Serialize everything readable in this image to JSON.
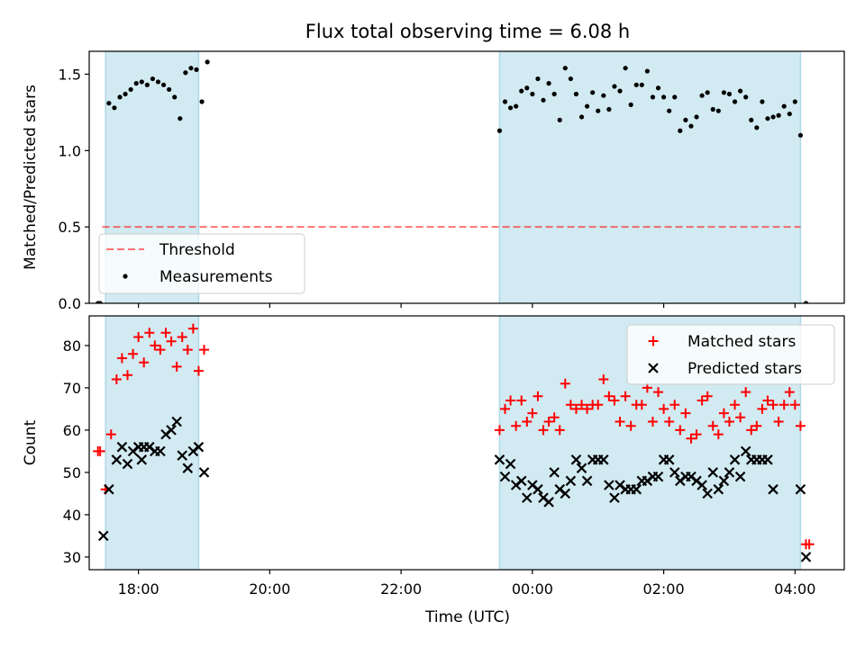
{
  "figure": {
    "title": "Flux total observing time = 6.08 h",
    "xlabel": "Time (UTC)"
  },
  "colors": {
    "shade": "#add8e6",
    "threshold": "#ff0000",
    "matched": "#ff0000",
    "predicted": "#000000",
    "measurement": "#000000"
  },
  "chart_data": [
    {
      "type": "scatter",
      "panel": "top",
      "ylabel": "Matched/Predicted stars",
      "xlim": [
        "17:15",
        "04:45"
      ],
      "ylim": [
        0,
        1.65
      ],
      "yticks": [
        0.0,
        0.5,
        1.0,
        1.5
      ],
      "ytick_labels": [
        "0.0",
        "0.5",
        "1.0",
        "1.5"
      ],
      "grid": false,
      "legend_position": "lower-left",
      "legend": [
        "Threshold",
        "Measurements"
      ],
      "shaded_intervals": [
        [
          "17:30",
          "18:55"
        ],
        [
          "23:30",
          "04:05"
        ]
      ],
      "threshold": {
        "name": "Threshold",
        "y": 0.5,
        "x_range": [
          "17:27",
          "04:05"
        ],
        "style": "dashed"
      },
      "series": [
        {
          "name": "Measurements",
          "marker": "dot",
          "points": [
            [
              "17:23",
              0.0
            ],
            [
              "17:25",
              0.0
            ],
            [
              "17:33",
              1.31
            ],
            [
              "17:38",
              1.28
            ],
            [
              "17:43",
              1.35
            ],
            [
              "17:48",
              1.37
            ],
            [
              "17:53",
              1.4
            ],
            [
              "17:58",
              1.44
            ],
            [
              "18:03",
              1.45
            ],
            [
              "18:08",
              1.43
            ],
            [
              "18:13",
              1.47
            ],
            [
              "18:18",
              1.45
            ],
            [
              "18:23",
              1.43
            ],
            [
              "18:28",
              1.4
            ],
            [
              "18:33",
              1.35
            ],
            [
              "18:38",
              1.21
            ],
            [
              "18:43",
              1.51
            ],
            [
              "18:48",
              1.54
            ],
            [
              "18:53",
              1.53
            ],
            [
              "18:58",
              1.32
            ],
            [
              "19:03",
              1.58
            ],
            [
              "23:30",
              1.13
            ],
            [
              "23:35",
              1.32
            ],
            [
              "23:40",
              1.28
            ],
            [
              "23:45",
              1.29
            ],
            [
              "23:50",
              1.39
            ],
            [
              "23:55",
              1.41
            ],
            [
              "00:00",
              1.37
            ],
            [
              "00:05",
              1.47
            ],
            [
              "00:10",
              1.33
            ],
            [
              "00:15",
              1.44
            ],
            [
              "00:20",
              1.37
            ],
            [
              "00:25",
              1.2
            ],
            [
              "00:30",
              1.54
            ],
            [
              "00:35",
              1.47
            ],
            [
              "00:40",
              1.37
            ],
            [
              "00:45",
              1.22
            ],
            [
              "00:50",
              1.29
            ],
            [
              "00:55",
              1.38
            ],
            [
              "01:00",
              1.26
            ],
            [
              "01:05",
              1.36
            ],
            [
              "01:10",
              1.27
            ],
            [
              "01:15",
              1.42
            ],
            [
              "01:20",
              1.39
            ],
            [
              "01:25",
              1.54
            ],
            [
              "01:30",
              1.3
            ],
            [
              "01:35",
              1.43
            ],
            [
              "01:40",
              1.43
            ],
            [
              "01:45",
              1.52
            ],
            [
              "01:50",
              1.35
            ],
            [
              "01:55",
              1.41
            ],
            [
              "02:00",
              1.35
            ],
            [
              "02:05",
              1.26
            ],
            [
              "02:10",
              1.35
            ],
            [
              "02:15",
              1.13
            ],
            [
              "02:20",
              1.2
            ],
            [
              "02:25",
              1.16
            ],
            [
              "02:30",
              1.22
            ],
            [
              "02:35",
              1.36
            ],
            [
              "02:40",
              1.38
            ],
            [
              "02:45",
              1.27
            ],
            [
              "02:50",
              1.26
            ],
            [
              "02:55",
              1.38
            ],
            [
              "03:00",
              1.37
            ],
            [
              "03:05",
              1.32
            ],
            [
              "03:10",
              1.39
            ],
            [
              "03:15",
              1.35
            ],
            [
              "03:20",
              1.2
            ],
            [
              "03:25",
              1.15
            ],
            [
              "03:30",
              1.32
            ],
            [
              "03:35",
              1.21
            ],
            [
              "03:40",
              1.22
            ],
            [
              "03:45",
              1.23
            ],
            [
              "03:50",
              1.29
            ],
            [
              "03:55",
              1.24
            ],
            [
              "04:00",
              1.32
            ],
            [
              "04:05",
              1.1
            ],
            [
              "04:10",
              0.0
            ]
          ]
        }
      ]
    },
    {
      "type": "scatter",
      "panel": "bottom",
      "ylabel": "Count",
      "xlabel": "Time (UTC)",
      "xlim": [
        "17:15",
        "04:45"
      ],
      "ylim": [
        27,
        87
      ],
      "yticks": [
        30,
        40,
        50,
        60,
        70,
        80
      ],
      "ytick_labels": [
        "30",
        "40",
        "50",
        "60",
        "70",
        "80"
      ],
      "xticks": [
        "18:00",
        "20:00",
        "22:00",
        "00:00",
        "02:00",
        "04:00"
      ],
      "xtick_labels": [
        "18:00",
        "20:00",
        "22:00",
        "00:00",
        "02:00",
        "04:00"
      ],
      "grid": false,
      "legend_position": "upper-right",
      "legend": [
        "Matched stars",
        "Predicted stars"
      ],
      "shaded_intervals": [
        [
          "17:30",
          "18:55"
        ],
        [
          "23:30",
          "04:05"
        ]
      ],
      "series": [
        {
          "name": "Matched stars",
          "marker": "plus",
          "points": [
            [
              "17:23",
              55
            ],
            [
              "17:25",
              55
            ],
            [
              "17:30",
              46
            ],
            [
              "17:35",
              59
            ],
            [
              "17:40",
              72
            ],
            [
              "17:45",
              77
            ],
            [
              "17:50",
              73
            ],
            [
              "17:55",
              78
            ],
            [
              "18:00",
              82
            ],
            [
              "18:05",
              76
            ],
            [
              "18:10",
              83
            ],
            [
              "18:15",
              80
            ],
            [
              "18:20",
              79
            ],
            [
              "18:25",
              83
            ],
            [
              "18:30",
              81
            ],
            [
              "18:35",
              75
            ],
            [
              "18:40",
              82
            ],
            [
              "18:45",
              79
            ],
            [
              "18:50",
              84
            ],
            [
              "18:55",
              74
            ],
            [
              "19:00",
              79
            ],
            [
              "23:30",
              60
            ],
            [
              "23:35",
              65
            ],
            [
              "23:40",
              67
            ],
            [
              "23:45",
              61
            ],
            [
              "23:50",
              67
            ],
            [
              "23:55",
              62
            ],
            [
              "00:00",
              64
            ],
            [
              "00:05",
              68
            ],
            [
              "00:10",
              60
            ],
            [
              "00:15",
              62
            ],
            [
              "00:20",
              63
            ],
            [
              "00:25",
              60
            ],
            [
              "00:30",
              71
            ],
            [
              "00:35",
              66
            ],
            [
              "00:40",
              65
            ],
            [
              "00:45",
              66
            ],
            [
              "00:50",
              65
            ],
            [
              "00:55",
              66
            ],
            [
              "01:00",
              66
            ],
            [
              "01:05",
              72
            ],
            [
              "01:10",
              68
            ],
            [
              "01:15",
              67
            ],
            [
              "01:20",
              62
            ],
            [
              "01:25",
              68
            ],
            [
              "01:30",
              61
            ],
            [
              "01:35",
              66
            ],
            [
              "01:40",
              66
            ],
            [
              "01:45",
              70
            ],
            [
              "01:50",
              62
            ],
            [
              "01:55",
              69
            ],
            [
              "02:00",
              65
            ],
            [
              "02:05",
              62
            ],
            [
              "02:10",
              66
            ],
            [
              "02:15",
              60
            ],
            [
              "02:20",
              64
            ],
            [
              "02:25",
              58
            ],
            [
              "02:30",
              59
            ],
            [
              "02:35",
              67
            ],
            [
              "02:40",
              68
            ],
            [
              "02:45",
              61
            ],
            [
              "02:50",
              59
            ],
            [
              "02:55",
              64
            ],
            [
              "03:00",
              62
            ],
            [
              "03:05",
              66
            ],
            [
              "03:10",
              63
            ],
            [
              "03:15",
              69
            ],
            [
              "03:20",
              60
            ],
            [
              "03:25",
              61
            ],
            [
              "03:30",
              65
            ],
            [
              "03:35",
              67
            ],
            [
              "03:40",
              66
            ],
            [
              "03:45",
              62
            ],
            [
              "03:50",
              66
            ],
            [
              "03:55",
              69
            ],
            [
              "04:00",
              66
            ],
            [
              "04:05",
              61
            ],
            [
              "04:10",
              33
            ],
            [
              "04:13",
              33
            ]
          ]
        },
        {
          "name": "Predicted stars",
          "marker": "x",
          "points": [
            [
              "17:28",
              35
            ],
            [
              "17:33",
              46
            ],
            [
              "17:40",
              53
            ],
            [
              "17:45",
              56
            ],
            [
              "17:50",
              52
            ],
            [
              "17:55",
              55
            ],
            [
              "18:00",
              56
            ],
            [
              "18:03",
              53
            ],
            [
              "18:05",
              56
            ],
            [
              "18:10",
              56
            ],
            [
              "18:15",
              55
            ],
            [
              "18:20",
              55
            ],
            [
              "18:25",
              59
            ],
            [
              "18:30",
              60
            ],
            [
              "18:35",
              62
            ],
            [
              "18:40",
              54
            ],
            [
              "18:45",
              51
            ],
            [
              "18:50",
              55
            ],
            [
              "18:55",
              56
            ],
            [
              "19:00",
              50
            ],
            [
              "23:30",
              53
            ],
            [
              "23:35",
              49
            ],
            [
              "23:40",
              52
            ],
            [
              "23:45",
              47
            ],
            [
              "23:50",
              48
            ],
            [
              "23:55",
              44
            ],
            [
              "00:00",
              47
            ],
            [
              "00:05",
              46
            ],
            [
              "00:10",
              44
            ],
            [
              "00:15",
              43
            ],
            [
              "00:20",
              50
            ],
            [
              "00:25",
              46
            ],
            [
              "00:30",
              45
            ],
            [
              "00:35",
              48
            ],
            [
              "00:40",
              53
            ],
            [
              "00:45",
              51
            ],
            [
              "00:50",
              48
            ],
            [
              "00:55",
              53
            ],
            [
              "01:00",
              53
            ],
            [
              "01:05",
              53
            ],
            [
              "01:10",
              47
            ],
            [
              "01:15",
              44
            ],
            [
              "01:20",
              47
            ],
            [
              "01:25",
              46
            ],
            [
              "01:30",
              46
            ],
            [
              "01:35",
              46
            ],
            [
              "01:40",
              48
            ],
            [
              "01:45",
              48
            ],
            [
              "01:50",
              49
            ],
            [
              "01:55",
              49
            ],
            [
              "02:00",
              53
            ],
            [
              "02:05",
              53
            ],
            [
              "02:10",
              50
            ],
            [
              "02:15",
              48
            ],
            [
              "02:20",
              49
            ],
            [
              "02:25",
              49
            ],
            [
              "02:30",
              48
            ],
            [
              "02:35",
              47
            ],
            [
              "02:40",
              45
            ],
            [
              "02:45",
              50
            ],
            [
              "02:50",
              46
            ],
            [
              "02:55",
              48
            ],
            [
              "03:00",
              50
            ],
            [
              "03:05",
              53
            ],
            [
              "03:10",
              49
            ],
            [
              "03:15",
              55
            ],
            [
              "03:20",
              53
            ],
            [
              "03:25",
              53
            ],
            [
              "03:30",
              53
            ],
            [
              "03:35",
              53
            ],
            [
              "03:40",
              46
            ],
            [
              "04:05",
              46
            ],
            [
              "04:10",
              30
            ]
          ]
        }
      ]
    }
  ]
}
